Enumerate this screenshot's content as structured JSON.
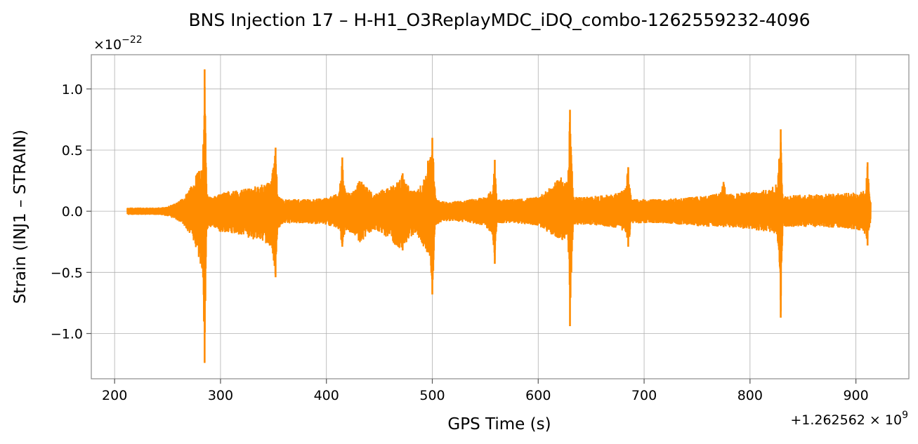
{
  "chart_data": {
    "type": "line",
    "title": "BNS Injection 17 – H-H1_O3ReplayMDC_iDQ_combo-1262559232-4096",
    "xlabel": "GPS Time (s)",
    "ylabel": "Strain (INJ1 – STRAIN)",
    "x_offset_text": "+1.262562 × 10",
    "x_offset_exp": "9",
    "y_scale_text": "×10",
    "y_scale_exp": "−22",
    "xlim": [
      178,
      950
    ],
    "ylim": [
      -1.37,
      1.28
    ],
    "grid": true,
    "line_color": "#ff8c00",
    "x_ticks": [
      {
        "value": 200,
        "label": "200"
      },
      {
        "value": 300,
        "label": "300"
      },
      {
        "value": 400,
        "label": "400"
      },
      {
        "value": 500,
        "label": "500"
      },
      {
        "value": 600,
        "label": "600"
      },
      {
        "value": 700,
        "label": "700"
      },
      {
        "value": 800,
        "label": "800"
      },
      {
        "value": 900,
        "label": "900"
      }
    ],
    "y_ticks": [
      {
        "value": 1.0,
        "label": "1.0"
      },
      {
        "value": 0.5,
        "label": "0.5"
      },
      {
        "value": 0.0,
        "label": "0.0"
      },
      {
        "value": -0.5,
        "label": "−0.5"
      },
      {
        "value": -1.0,
        "label": "−1.0"
      }
    ],
    "series": [
      {
        "x_start": 212,
        "x_end": 914,
        "envelope": [
          [
            212,
            0.03,
            -0.03
          ],
          [
            240,
            0.03,
            -0.03
          ],
          [
            250,
            0.04,
            -0.04
          ],
          [
            258,
            0.07,
            -0.07
          ],
          [
            265,
            0.11,
            -0.11
          ],
          [
            272,
            0.2,
            -0.2
          ],
          [
            278,
            0.33,
            -0.33
          ],
          [
            283,
            0.36,
            -0.5
          ],
          [
            285,
            1.16,
            -1.24
          ],
          [
            287,
            0.15,
            -0.16
          ],
          [
            292,
            0.12,
            -0.12
          ],
          [
            300,
            0.15,
            -0.17
          ],
          [
            310,
            0.17,
            -0.18
          ],
          [
            320,
            0.18,
            -0.2
          ],
          [
            330,
            0.2,
            -0.23
          ],
          [
            340,
            0.22,
            -0.25
          ],
          [
            348,
            0.26,
            -0.3
          ],
          [
            352,
            0.52,
            -0.54
          ],
          [
            354,
            0.13,
            -0.15
          ],
          [
            360,
            0.1,
            -0.1
          ],
          [
            380,
            0.1,
            -0.1
          ],
          [
            400,
            0.11,
            -0.11
          ],
          [
            412,
            0.15,
            -0.15
          ],
          [
            415,
            0.44,
            -0.29
          ],
          [
            418,
            0.15,
            -0.16
          ],
          [
            425,
            0.17,
            -0.18
          ],
          [
            432,
            0.26,
            -0.27
          ],
          [
            438,
            0.2,
            -0.2
          ],
          [
            445,
            0.14,
            -0.15
          ],
          [
            452,
            0.18,
            -0.2
          ],
          [
            460,
            0.2,
            -0.22
          ],
          [
            465,
            0.22,
            -0.28
          ],
          [
            472,
            0.31,
            -0.32
          ],
          [
            478,
            0.2,
            -0.22
          ],
          [
            485,
            0.16,
            -0.18
          ],
          [
            492,
            0.26,
            -0.3
          ],
          [
            498,
            0.5,
            -0.39
          ],
          [
            500,
            0.6,
            -0.68
          ],
          [
            503,
            0.12,
            -0.12
          ],
          [
            510,
            0.08,
            -0.08
          ],
          [
            530,
            0.09,
            -0.09
          ],
          [
            550,
            0.12,
            -0.12
          ],
          [
            557,
            0.18,
            -0.2
          ],
          [
            559,
            0.42,
            -0.43
          ],
          [
            561,
            0.1,
            -0.1
          ],
          [
            580,
            0.1,
            -0.1
          ],
          [
            600,
            0.12,
            -0.12
          ],
          [
            612,
            0.2,
            -0.19
          ],
          [
            622,
            0.29,
            -0.25
          ],
          [
            628,
            0.25,
            -0.2
          ],
          [
            630,
            0.83,
            -0.94
          ],
          [
            633,
            0.12,
            -0.12
          ],
          [
            645,
            0.12,
            -0.11
          ],
          [
            660,
            0.13,
            -0.12
          ],
          [
            675,
            0.15,
            -0.14
          ],
          [
            682,
            0.18,
            -0.17
          ],
          [
            685,
            0.36,
            -0.29
          ],
          [
            688,
            0.1,
            -0.1
          ],
          [
            720,
            0.1,
            -0.1
          ],
          [
            760,
            0.13,
            -0.13
          ],
          [
            772,
            0.15,
            -0.13
          ],
          [
            775,
            0.24,
            -0.13
          ],
          [
            778,
            0.14,
            -0.13
          ],
          [
            800,
            0.16,
            -0.15
          ],
          [
            818,
            0.18,
            -0.17
          ],
          [
            826,
            0.24,
            -0.23
          ],
          [
            829,
            0.67,
            -0.87
          ],
          [
            831,
            0.13,
            -0.13
          ],
          [
            860,
            0.14,
            -0.13
          ],
          [
            890,
            0.15,
            -0.14
          ],
          [
            905,
            0.16,
            -0.16
          ],
          [
            909,
            0.18,
            -0.2
          ],
          [
            911,
            0.4,
            -0.28
          ],
          [
            913,
            0.12,
            -0.12
          ],
          [
            914,
            0.1,
            -0.1
          ]
        ]
      }
    ]
  }
}
